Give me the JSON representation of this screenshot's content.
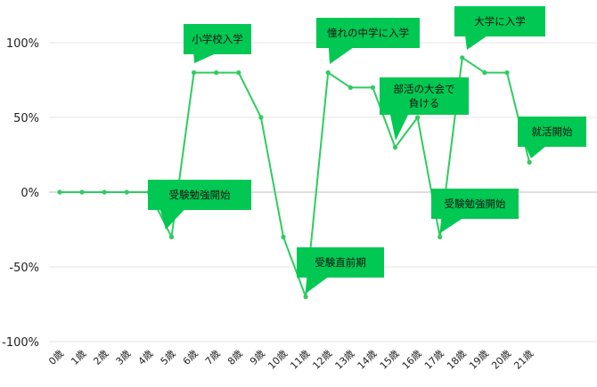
{
  "chart_data": {
    "type": "line",
    "categories": [
      "0歳",
      "1歳",
      "2歳",
      "3歳",
      "4歳",
      "5歳",
      "6歳",
      "7歳",
      "8歳",
      "9歳",
      "10歳",
      "11歳",
      "12歳",
      "13歳",
      "14歳",
      "15歳",
      "16歳",
      "17歳",
      "18歳",
      "19歳",
      "20歳",
      "21歳"
    ],
    "series": [
      {
        "values": [
          0,
          0,
          0,
          0,
          0,
          -30,
          80,
          80,
          80,
          50,
          -30,
          -70,
          80,
          70,
          70,
          30,
          50,
          -30,
          90,
          80,
          80,
          20
        ]
      }
    ],
    "ylim": [
      -100,
      100
    ],
    "yticks": [
      100,
      50,
      0,
      -50,
      -100
    ],
    "ytick_labels": [
      "100%",
      "50%",
      "0%",
      "-50%",
      "-100%"
    ],
    "grid": true,
    "colors": {
      "line": "#2ecc5f",
      "callout": "#00c853",
      "grid": "#e6e6e6",
      "zero_line": "#bdbdbd"
    },
    "annotations": [
      {
        "index": 6,
        "lines": [
          "小学校入学"
        ]
      },
      {
        "index": 5,
        "lines": [
          "受験勉強開始"
        ]
      },
      {
        "index": 11,
        "lines": [
          "受験直前期"
        ]
      },
      {
        "index": 12,
        "lines": [
          "憧れの中学に入学"
        ]
      },
      {
        "index": 15,
        "lines": [
          "部活の大会で",
          "負ける"
        ]
      },
      {
        "index": 17,
        "lines": [
          "受験勉強開始"
        ]
      },
      {
        "index": 18,
        "lines": [
          "大学に入学"
        ]
      },
      {
        "index": 21,
        "lines": [
          "就活開始"
        ]
      }
    ]
  }
}
